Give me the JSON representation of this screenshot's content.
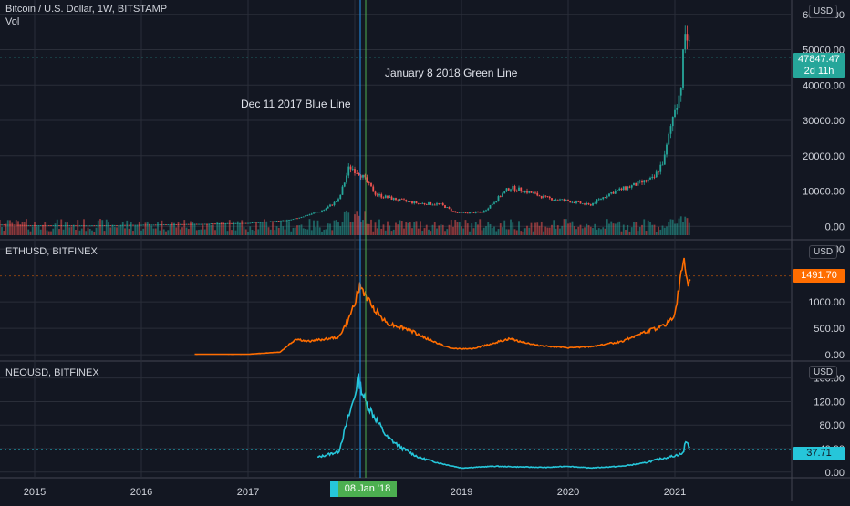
{
  "colors": {
    "background": "#131722",
    "grid": "#2a2e39",
    "up": "#26a69a",
    "down": "#ef5350",
    "eth_line": "#ff6d00",
    "neo_line": "#26c6da",
    "vline_blue": "#2196f3",
    "vline_green": "#4caf50"
  },
  "panes": {
    "btc": {
      "title": "Bitcoin / U.S. Dollar, 1W, BITSTAMP",
      "subtitle": "Vol",
      "unit": "USD",
      "last_price": "47847.47",
      "countdown": "2d 11h"
    },
    "eth": {
      "title": "ETHUSD, BITFINEX",
      "unit": "USD",
      "last_price": "1491.70"
    },
    "neo": {
      "title": "NEOUSD, BITFINEX",
      "unit": "USD",
      "last_price": "37.71"
    }
  },
  "annotations": {
    "blue_line": "Dec 11 2017 Blue Line",
    "green_line": "January 8 2018 Green Line"
  },
  "crosshair_date": "08 Jan '18",
  "chart_data": [
    {
      "type": "candlestick",
      "title": "Bitcoin / U.S. Dollar, 1W, BITSTAMP",
      "ylim": [
        -2500,
        62000
      ],
      "y_ticks": [
        "0.00",
        "10000.00",
        "20000.00",
        "30000.00",
        "40000.00",
        "50000.00",
        "60000.00"
      ],
      "x_ticks": [
        "2015",
        "2016",
        "2017",
        "2018",
        "2019",
        "2020",
        "2021"
      ],
      "x": [
        2014.0,
        2014.5,
        2015.0,
        2015.5,
        2016.0,
        2016.5,
        2017.0,
        2017.4,
        2017.7,
        2017.85,
        2017.95,
        2018.05,
        2018.2,
        2018.4,
        2018.6,
        2018.8,
        2018.95,
        2019.2,
        2019.45,
        2019.6,
        2019.8,
        2020.0,
        2020.2,
        2020.4,
        2020.6,
        2020.8,
        2020.9,
        2021.0,
        2021.05,
        2021.1,
        2021.15
      ],
      "y": [
        800,
        600,
        300,
        250,
        430,
        650,
        950,
        1800,
        4500,
        7500,
        17000,
        15000,
        9000,
        7500,
        6500,
        6300,
        3800,
        4000,
        11000,
        10000,
        8000,
        7200,
        6000,
        9500,
        11500,
        13500,
        19000,
        34000,
        38000,
        56000,
        47847.47
      ]
    },
    {
      "type": "line",
      "title": "ETHUSD, BITFINEX",
      "ylim": [
        -50,
        2020
      ],
      "y_ticks": [
        "0.00",
        "500.00",
        "1000.00",
        "2000"
      ],
      "x": [
        2016.5,
        2017.0,
        2017.3,
        2017.45,
        2017.55,
        2017.7,
        2017.85,
        2017.95,
        2018.05,
        2018.15,
        2018.3,
        2018.5,
        2018.7,
        2018.9,
        2019.1,
        2019.45,
        2019.7,
        2020.0,
        2020.2,
        2020.5,
        2020.65,
        2020.9,
        2021.0,
        2021.08,
        2021.12,
        2021.15
      ],
      "y": [
        10,
        10,
        50,
        300,
        250,
        290,
        330,
        700,
        1300,
        950,
        600,
        480,
        280,
        120,
        110,
        300,
        180,
        130,
        150,
        250,
        380,
        550,
        750,
        1800,
        1350,
        1491.7
      ]
    },
    {
      "type": "line",
      "title": "NEOUSD, BITFINEX",
      "ylim": [
        -5,
        175
      ],
      "y_ticks": [
        "0.00",
        "40.00",
        "80.00",
        "120.00",
        "160.00"
      ],
      "x": [
        2017.65,
        2017.75,
        2017.85,
        2017.92,
        2018.0,
        2018.03,
        2018.1,
        2018.2,
        2018.3,
        2018.45,
        2018.6,
        2018.8,
        2019.0,
        2019.3,
        2019.5,
        2019.8,
        2020.0,
        2020.2,
        2020.5,
        2020.7,
        2020.85,
        2021.0,
        2021.08,
        2021.1,
        2021.15
      ],
      "y": [
        25,
        30,
        35,
        80,
        130,
        160,
        120,
        90,
        60,
        40,
        25,
        15,
        7,
        10,
        9,
        8,
        10,
        7,
        10,
        15,
        22,
        28,
        32,
        55,
        37.71
      ]
    }
  ]
}
